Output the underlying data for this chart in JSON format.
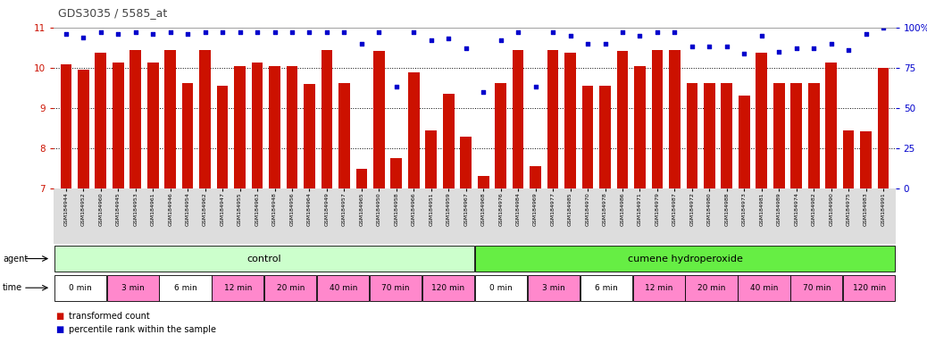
{
  "title": "GDS3035 / 5585_at",
  "sample_ids": [
    "GSM184944",
    "GSM184952",
    "GSM184960",
    "GSM184945",
    "GSM184953",
    "GSM184961",
    "GSM184946",
    "GSM184954",
    "GSM184962",
    "GSM184947",
    "GSM184955",
    "GSM184963",
    "GSM184948",
    "GSM184956",
    "GSM184964",
    "GSM184949",
    "GSM184957",
    "GSM184965",
    "GSM184950",
    "GSM184958",
    "GSM184966",
    "GSM184951",
    "GSM184959",
    "GSM184967",
    "GSM184968",
    "GSM184976",
    "GSM184984",
    "GSM184969",
    "GSM184977",
    "GSM184985",
    "GSM184970",
    "GSM184978",
    "GSM184986",
    "GSM184971",
    "GSM184979",
    "GSM184987",
    "GSM184972",
    "GSM184980",
    "GSM184988",
    "GSM184973",
    "GSM184981",
    "GSM184989",
    "GSM184974",
    "GSM184982",
    "GSM184990",
    "GSM184975",
    "GSM184983",
    "GSM184991"
  ],
  "bar_values": [
    10.08,
    9.95,
    10.38,
    10.12,
    10.45,
    10.12,
    10.45,
    9.62,
    10.45,
    9.55,
    10.05,
    10.12,
    10.05,
    10.05,
    9.6,
    10.45,
    9.62,
    7.5,
    10.42,
    7.75,
    9.88,
    8.45,
    9.35,
    8.3,
    7.32,
    9.62,
    10.45,
    7.55,
    10.45,
    10.38,
    9.55,
    9.55,
    10.42,
    10.05,
    10.45,
    10.45,
    9.62,
    9.62,
    9.62,
    9.3,
    10.38,
    9.62,
    9.62,
    9.62,
    10.12,
    8.45,
    8.42,
    10.0
  ],
  "percentile_values": [
    96,
    94,
    97,
    96,
    97,
    96,
    97,
    96,
    97,
    97,
    97,
    97,
    97,
    97,
    97,
    97,
    97,
    90,
    97,
    63,
    97,
    92,
    93,
    87,
    60,
    92,
    97,
    63,
    97,
    95,
    90,
    90,
    97,
    95,
    97,
    97,
    88,
    88,
    88,
    84,
    95,
    85,
    87,
    87,
    90,
    86,
    96,
    100
  ],
  "ylim_left": [
    7,
    11
  ],
  "ylim_right": [
    0,
    100
  ],
  "bar_color": "#cc1100",
  "dot_color": "#0000cc",
  "bg_color": "#ffffff",
  "plot_bg": "#ffffff",
  "title_color": "#444444",
  "left_axis_color": "#cc1100",
  "right_axis_color": "#0000cc",
  "agent_row_label": "agent",
  "time_row_label": "time",
  "control_label": "control",
  "cumene_label": "cumene hydroperoxide",
  "control_color": "#ccffcc",
  "cumene_color": "#66ee44",
  "time_labels": [
    "0 min",
    "3 min",
    "6 min",
    "12 min",
    "20 min",
    "40 min",
    "70 min",
    "120 min",
    "0 min",
    "3 min",
    "6 min",
    "12 min",
    "20 min",
    "40 min",
    "70 min",
    "120 min"
  ],
  "time_colors": [
    "#ffffff",
    "#ff88cc",
    "#ffffff",
    "#ff88cc",
    "#ff88cc",
    "#ff88cc",
    "#ff88cc",
    "#ff88cc",
    "#ffffff",
    "#ff88cc",
    "#ffffff",
    "#ff88cc",
    "#ff88cc",
    "#ff88cc",
    "#ff88cc",
    "#ff88cc"
  ],
  "legend_bar_label": "transformed count",
  "legend_dot_label": "percentile rank within the sample",
  "n_control": 24,
  "n_cumene": 24,
  "samples_per_time": 3
}
